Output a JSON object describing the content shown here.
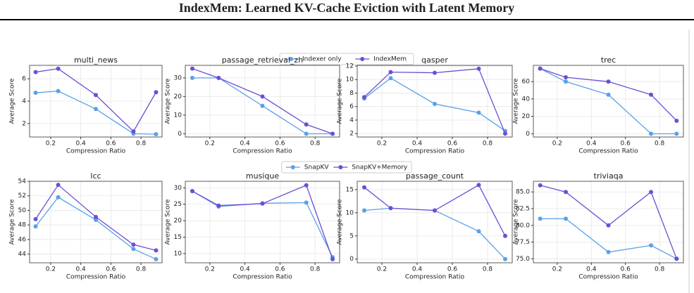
{
  "title": "IndexMem: Learned KV-Cache Eviction with Latent Memory",
  "chart_data": [
    {
      "type": "line",
      "title": "multi_news",
      "xlabel": "Compression Ratio",
      "ylabel": "Average Score",
      "x": [
        0.1,
        0.25,
        0.5,
        0.75,
        0.9
      ],
      "xlim": [
        0.06,
        0.94
      ],
      "xticks": [
        0.2,
        0.4,
        0.6,
        0.8
      ],
      "ylim": [
        0.8,
        7.2
      ],
      "yticks": [
        2,
        4,
        6
      ],
      "grid": true,
      "series": [
        {
          "name": "Indexer only",
          "color": "#5aa0e8",
          "values": [
            4.75,
            4.9,
            3.3,
            1.1,
            1.05
          ]
        },
        {
          "name": "IndexMem",
          "color": "#6a4fd6",
          "values": [
            6.6,
            6.9,
            4.55,
            1.3,
            4.8
          ]
        }
      ]
    },
    {
      "type": "line",
      "title": "passage_retrieval_zh",
      "xlabel": "Compression Ratio",
      "ylabel": "Average Score",
      "x": [
        0.1,
        0.25,
        0.5,
        0.75,
        0.9
      ],
      "xlim": [
        0.06,
        0.94
      ],
      "xticks": [
        0.2,
        0.4,
        0.6,
        0.8
      ],
      "ylim": [
        -1.75,
        36.75
      ],
      "yticks": [
        0,
        10,
        20,
        30
      ],
      "grid": true,
      "series": [
        {
          "color": "#5aa0e8",
          "values": [
            30,
            30,
            15,
            0,
            0
          ]
        },
        {
          "color": "#6a4fd6",
          "values": [
            35,
            30,
            20,
            5,
            0
          ]
        }
      ]
    },
    {
      "type": "line",
      "title": "qasper",
      "xlabel": "Compression Ratio",
      "ylabel": "Average Score",
      "x": [
        0.1,
        0.25,
        0.5,
        0.75,
        0.9
      ],
      "xlim": [
        0.06,
        0.94
      ],
      "xticks": [
        0.2,
        0.4,
        0.6,
        0.8
      ],
      "ylim": [
        1.5,
        12.1
      ],
      "yticks": [
        2,
        4,
        6,
        8,
        10,
        12
      ],
      "grid": true,
      "series": [
        {
          "color": "#5aa0e8",
          "values": [
            7.2,
            10.2,
            6.4,
            5.1,
            2.4
          ]
        },
        {
          "color": "#6a4fd6",
          "values": [
            7.4,
            11.1,
            11.0,
            11.6,
            2.0
          ]
        }
      ]
    },
    {
      "type": "line",
      "title": "trec",
      "xlabel": "Compression Ratio",
      "ylabel": "Average Score",
      "x": [
        0.1,
        0.25,
        0.5,
        0.75,
        0.9
      ],
      "xlim": [
        0.06,
        0.94
      ],
      "xticks": [
        0.2,
        0.4,
        0.6,
        0.8
      ],
      "ylim": [
        -3.75,
        78.75
      ],
      "yticks": [
        0,
        20,
        40,
        60
      ],
      "grid": true,
      "series": [
        {
          "color": "#5aa0e8",
          "values": [
            75,
            60,
            45,
            0,
            0
          ]
        },
        {
          "color": "#6a4fd6",
          "values": [
            75,
            65,
            60,
            45,
            15
          ]
        }
      ]
    },
    {
      "type": "line",
      "title": "lcc",
      "xlabel": "Compression Ratio",
      "ylabel": "Average Score",
      "x": [
        0.1,
        0.25,
        0.5,
        0.75,
        0.9
      ],
      "xlim": [
        0.06,
        0.94
      ],
      "xticks": [
        0.2,
        0.4,
        0.6,
        0.8
      ],
      "ylim": [
        42.8,
        54
      ],
      "yticks": [
        44,
        46,
        48,
        50,
        52,
        54
      ],
      "grid": true,
      "series": [
        {
          "name": "SnapKV",
          "color": "#5aa0e8",
          "values": [
            47.8,
            51.8,
            48.7,
            44.7,
            43.3
          ]
        },
        {
          "name": "SnapKV+Memory",
          "color": "#6a4fd6",
          "values": [
            48.8,
            53.5,
            49.1,
            45.3,
            44.5
          ]
        }
      ]
    },
    {
      "type": "line",
      "title": "musique",
      "xlabel": "Compression Ratio",
      "ylabel": "Average Score",
      "x": [
        0.1,
        0.25,
        0.5,
        0.75,
        0.9
      ],
      "xlim": [
        0.06,
        0.94
      ],
      "xticks": [
        0.2,
        0.4,
        0.6,
        0.8
      ],
      "ylim": [
        7.2,
        32
      ],
      "yticks": [
        10,
        15,
        20,
        25,
        30
      ],
      "grid": true,
      "series": [
        {
          "color": "#5aa0e8",
          "values": [
            29,
            24.3,
            25.3,
            25.5,
            8.9
          ]
        },
        {
          "color": "#6a4fd6",
          "values": [
            29,
            24.6,
            25.2,
            30.8,
            8.3
          ]
        }
      ]
    },
    {
      "type": "line",
      "title": "passage_count",
      "xlabel": "Compression Ratio",
      "ylabel": "Average Score",
      "x": [
        0.1,
        0.25,
        0.5,
        0.75,
        0.9
      ],
      "xlim": [
        0.06,
        0.94
      ],
      "xticks": [
        0.2,
        0.4,
        0.6,
        0.8
      ],
      "ylim": [
        -0.8,
        16.8
      ],
      "yticks": [
        0,
        5,
        10,
        15
      ],
      "grid": true,
      "series": [
        {
          "color": "#5aa0e8",
          "values": [
            10.5,
            11,
            10.5,
            6,
            0
          ]
        },
        {
          "color": "#6a4fd6",
          "values": [
            15.5,
            11,
            10.5,
            16,
            5
          ]
        }
      ]
    },
    {
      "type": "line",
      "title": "triviaqa",
      "xlabel": "Compression Ratio",
      "ylabel": "Average Score",
      "x": [
        0.1,
        0.25,
        0.5,
        0.75,
        0.9
      ],
      "xlim": [
        0.06,
        0.94
      ],
      "xticks": [
        0.2,
        0.4,
        0.6,
        0.8
      ],
      "ylim": [
        74.4,
        86.6
      ],
      "yticks": [
        {
          "value": 75,
          "label": "75.0"
        },
        77.5,
        {
          "value": 80,
          "label": "80.0"
        },
        82.5,
        {
          "value": 85,
          "label": "85.0"
        }
      ],
      "grid": true,
      "series": [
        {
          "color": "#5aa0e8",
          "values": [
            81,
            81,
            76,
            77,
            75
          ]
        },
        {
          "color": "#6a4fd6",
          "values": [
            86,
            85,
            80,
            85,
            75
          ]
        }
      ]
    }
  ]
}
